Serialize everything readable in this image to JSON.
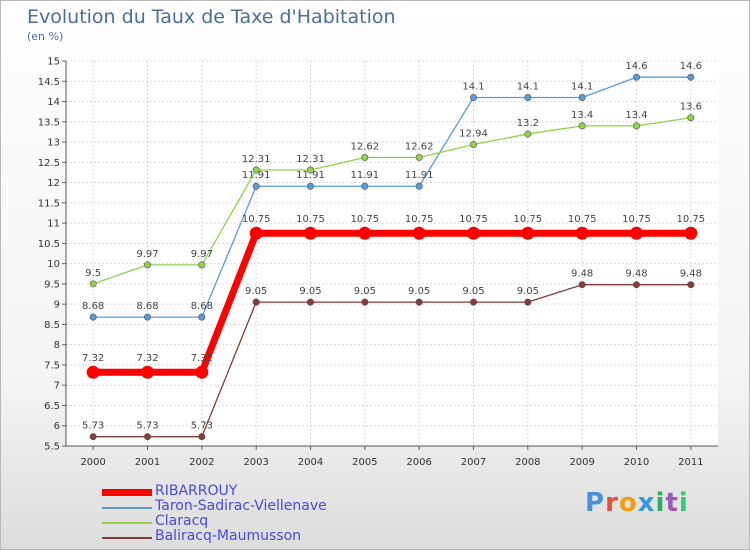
{
  "title": "Evolution du Taux de Taxe d'Habitation",
  "subtitle": "(en %)",
  "logo": {
    "text": "Proxiti",
    "colors": [
      "#4a90d9",
      "#e84c3d",
      "#f39c12",
      "#3498db",
      "#27ae60",
      "#9b59b6",
      "#2ecc71"
    ]
  },
  "chart_data": {
    "type": "line",
    "title": "Evolution du Taux de Taxe d'Habitation",
    "ylabel": "(en %)",
    "xlabel": "",
    "x": [
      "2000",
      "2001",
      "2002",
      "2003",
      "2004",
      "2005",
      "2006",
      "2007",
      "2008",
      "2009",
      "2010",
      "2011"
    ],
    "ylim": [
      5.5,
      15
    ],
    "yticks": [
      "5.5",
      "6",
      "6.5",
      "7",
      "7.5",
      "8",
      "8.5",
      "9",
      "9.5",
      "10",
      "10.5",
      "11",
      "11.5",
      "12",
      "12.5",
      "13",
      "13.5",
      "14",
      "14.5",
      "15"
    ],
    "grid": true,
    "legend_position": "bottom-left",
    "series": [
      {
        "name": "RIBARROUY",
        "color": "#ff0000",
        "values": [
          7.32,
          7.32,
          7.32,
          10.75,
          10.75,
          10.75,
          10.75,
          10.75,
          10.75,
          10.75,
          10.75,
          10.75
        ],
        "labels": [
          "7.32",
          "7.32",
          "7.32",
          "10.75",
          "10.75",
          "10.75",
          "10.75",
          "10.75",
          "10.75",
          "10.75",
          "10.75",
          "10.75"
        ]
      },
      {
        "name": "Taron-Sadirac-Viellenave",
        "color": "#5b9bd5",
        "values": [
          8.68,
          8.68,
          8.68,
          11.91,
          11.91,
          11.91,
          11.91,
          14.1,
          14.1,
          14.1,
          14.6,
          14.6
        ],
        "labels": [
          "8.68",
          "8.68",
          "8.68",
          "11.91",
          "11.91",
          "11.91",
          "11.91",
          "14.1",
          "14.1",
          "14.1",
          "14.6",
          "14.6"
        ]
      },
      {
        "name": "Claracq",
        "color": "#92d050",
        "values": [
          9.5,
          9.97,
          9.97,
          12.31,
          12.31,
          12.62,
          12.62,
          12.94,
          13.2,
          13.4,
          13.4,
          13.6
        ],
        "labels": [
          "9.5",
          "9.97",
          "9.97",
          "12.31",
          "12.31",
          "12.62",
          "12.62",
          "12.94",
          "13.2",
          "13.4",
          "13.4",
          "13.6"
        ]
      },
      {
        "name": "Baliracq-Maumusson",
        "color": "#843c3c",
        "values": [
          5.73,
          5.73,
          5.73,
          9.05,
          9.05,
          9.05,
          9.05,
          9.05,
          9.05,
          9.48,
          9.48,
          9.48
        ],
        "labels": [
          "5.73",
          "5.73",
          "5.73",
          "9.05",
          "9.05",
          "9.05",
          "9.05",
          "9.05",
          "9.05",
          "9.48",
          "9.48",
          "9.48"
        ]
      }
    ]
  }
}
